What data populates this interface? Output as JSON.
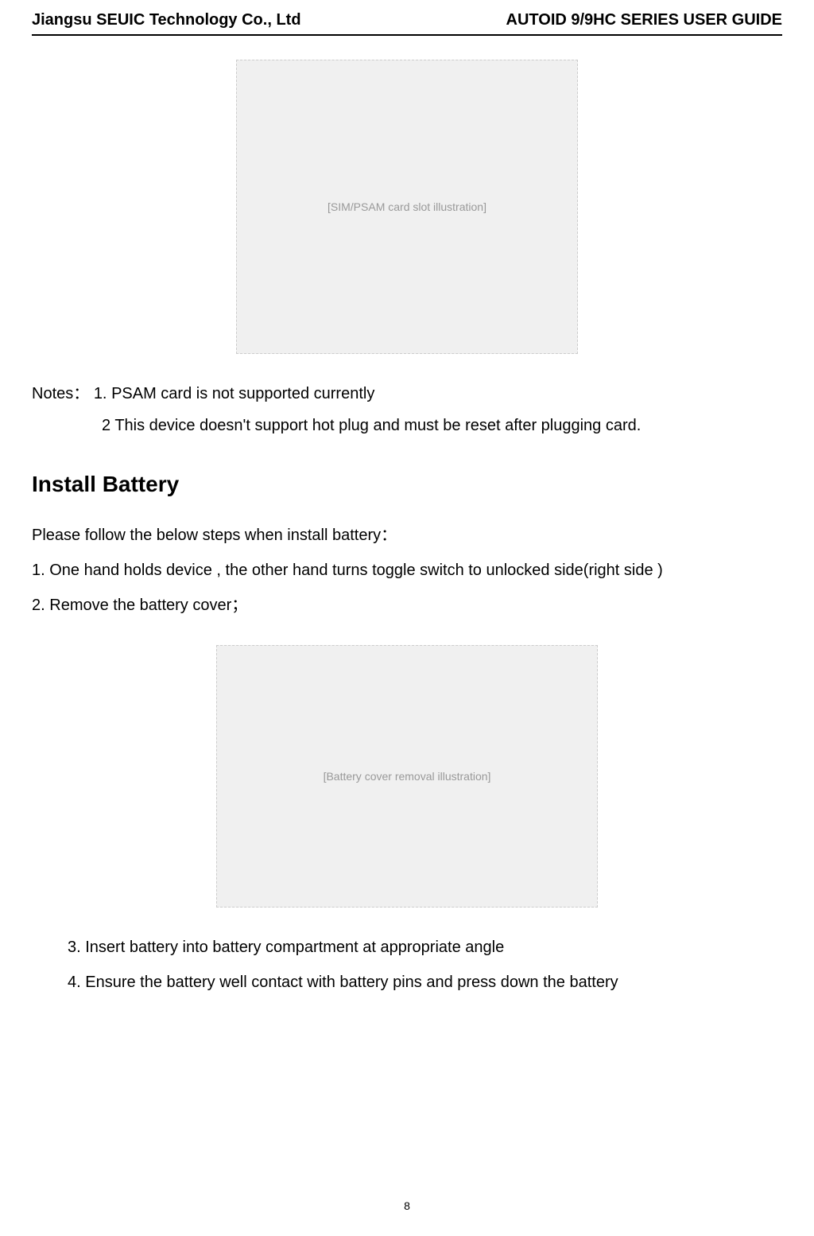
{
  "header": {
    "company": "Jiangsu SEUIC Technology Co., Ltd",
    "doc_title": "AUTOID 9/9HC SERIES USER GUIDE"
  },
  "figures": {
    "fig1_placeholder": "[SIM/PSAM card slot illustration]",
    "fig2_placeholder": "[Battery cover removal illustration]"
  },
  "notes": {
    "label": "Notes：",
    "item1_prefix": "1. ",
    "item1_text_a": "PSAM card is not supported ",
    "item1_text_b": "currently",
    "item2_prefix": "2 ",
    "item2_text": "This device doesn't support hot plug and must be reset after plugging card."
  },
  "section": {
    "heading": "Install Battery",
    "intro": "Please follow the below steps when install battery："
  },
  "steps_top": {
    "s1_prefix": "1. ",
    "s1_text": "One hand holds device , the other hand turns toggle switch to unlocked side(right side )",
    "s2_prefix": "2. ",
    "s2_text": "Remove the battery cover；"
  },
  "steps_bottom": {
    "s3_prefix": "3. ",
    "s3_text": "Insert battery into battery compartment at appropriate angle",
    "s4_prefix": "4. ",
    "s4_text": "Ensure the battery well contact with battery pins and press down the battery"
  },
  "page_number": "8",
  "colors": {
    "text": "#000000",
    "background": "#ffffff",
    "placeholder_bg": "#f0f0f0",
    "placeholder_border": "#cccccc",
    "placeholder_text": "#999999"
  },
  "typography": {
    "header_fontsize": 20,
    "heading_fontsize": 28,
    "body_fontsize": 20,
    "page_number_fontsize": 14
  }
}
